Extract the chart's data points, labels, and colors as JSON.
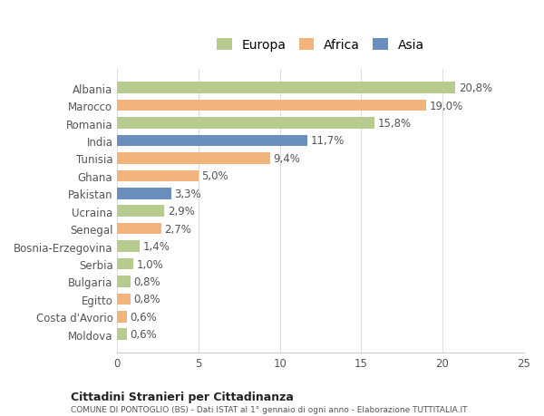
{
  "countries": [
    "Albania",
    "Marocco",
    "Romania",
    "India",
    "Tunisia",
    "Ghana",
    "Pakistan",
    "Ucraina",
    "Senegal",
    "Bosnia-Erzegovina",
    "Serbia",
    "Bulgaria",
    "Egitto",
    "Costa d'Avorio",
    "Moldova"
  ],
  "values": [
    20.8,
    19.0,
    15.8,
    11.7,
    9.4,
    5.0,
    3.3,
    2.9,
    2.7,
    1.4,
    1.0,
    0.8,
    0.8,
    0.6,
    0.6
  ],
  "labels": [
    "20,8%",
    "19,0%",
    "15,8%",
    "11,7%",
    "9,4%",
    "5,0%",
    "3,3%",
    "2,9%",
    "2,7%",
    "1,4%",
    "1,0%",
    "0,8%",
    "0,8%",
    "0,6%",
    "0,6%"
  ],
  "continents": [
    "Europa",
    "Africa",
    "Europa",
    "Asia",
    "Africa",
    "Africa",
    "Asia",
    "Europa",
    "Africa",
    "Europa",
    "Europa",
    "Europa",
    "Africa",
    "Africa",
    "Europa"
  ],
  "colors": {
    "Europa": "#b5cc8e",
    "Africa": "#f0b47c",
    "Asia": "#6a8fbf"
  },
  "legend_labels": [
    "Europa",
    "Africa",
    "Asia"
  ],
  "legend_colors": [
    "#b5cc8e",
    "#f0b47c",
    "#6a8fbf"
  ],
  "xlim": [
    0,
    25
  ],
  "xticks": [
    0,
    5,
    10,
    15,
    20,
    25
  ],
  "title": "Cittadini Stranieri per Cittadinanza",
  "subtitle": "COMUNE DI PONTOGLIO (BS) - Dati ISTAT al 1° gennaio di ogni anno - Elaborazione TUTTITALIA.IT",
  "background_color": "#ffffff",
  "bar_height": 0.65,
  "label_fontsize": 8.5,
  "tick_fontsize": 8.5,
  "legend_fontsize": 10
}
